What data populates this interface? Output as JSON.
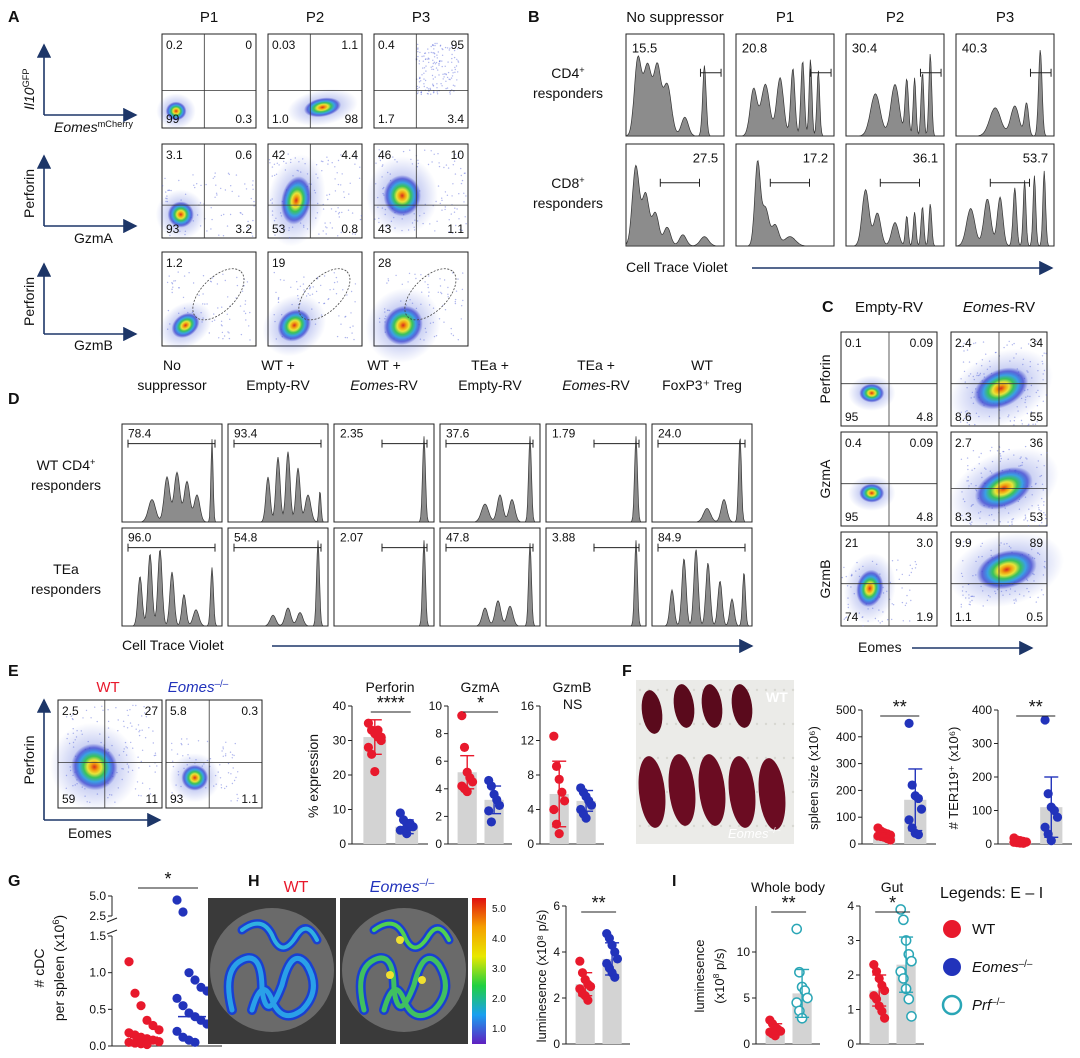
{
  "colors": {
    "wt": "#e8192c",
    "ko": "#2233bb",
    "prf": "#2aa6b6",
    "bar": "#d3d3d3",
    "arrow": "#1d3668",
    "hist": "#8c8c8c"
  },
  "A": {
    "letter": "A",
    "cols": [
      "P1",
      "P2",
      "P3"
    ],
    "axes": [
      {
        "y": "Il10",
        "ysup": "GFP",
        "x": "Eomes",
        "xsup": "mCherry"
      },
      {
        "y": "Perforin",
        "x": "GzmA"
      },
      {
        "y": "Perforin",
        "x": "GzmB"
      }
    ],
    "quads": [
      [
        [
          "0.2",
          "0",
          "99",
          "0.3"
        ],
        [
          "0.03",
          "1.1",
          "1.0",
          "98"
        ],
        [
          "0.4",
          "95",
          "1.7",
          "3.4"
        ]
      ],
      [
        [
          "3.1",
          "0.6",
          "93",
          "3.2"
        ],
        [
          "42",
          "4.4",
          "53",
          "0.8"
        ],
        [
          "46",
          "10",
          "43",
          "1.1"
        ]
      ]
    ],
    "gates": [
      "1.2",
      "19",
      "28"
    ]
  },
  "B": {
    "letter": "B",
    "cols": [
      "No suppressor",
      "P1",
      "P2",
      "P3"
    ],
    "rows": [
      {
        "l1": "CD4",
        "sup": "+",
        "l2": "responders"
      },
      {
        "l1": "CD8",
        "sup": "+",
        "l2": "responders"
      }
    ],
    "vals": [
      [
        "15.5",
        "20.8",
        "30.4",
        "40.3"
      ],
      [
        "27.5",
        "17.2",
        "36.1",
        "53.7"
      ]
    ],
    "xlabel": "Cell Trace Violet"
  },
  "C": {
    "letter": "C",
    "cols": [
      "Empty-RV",
      "Eomes-RV"
    ],
    "rows": [
      "Perforin",
      "GzmA",
      "GzmB"
    ],
    "quads": [
      [
        [
          "0.1",
          "0.09",
          "95",
          "4.8"
        ],
        [
          "2.4",
          "34",
          "8.6",
          "55"
        ]
      ],
      [
        [
          "0.4",
          "0.09",
          "95",
          "4.8"
        ],
        [
          "2.7",
          "36",
          "8.3",
          "53"
        ]
      ],
      [
        [
          "21",
          "3.0",
          "74",
          "1.9"
        ],
        [
          "9.9",
          "89",
          "1.1",
          "0.5"
        ]
      ]
    ],
    "xlabel": "Eomes"
  },
  "D": {
    "letter": "D",
    "cols": [
      {
        "l1": "No",
        "l2": "suppressor"
      },
      {
        "l1": "WT +",
        "l2": "Empty-RV"
      },
      {
        "l1": "WT +",
        "l2": "Eomes-RV"
      },
      {
        "l1": "TEa +",
        "l2": "Empty-RV"
      },
      {
        "l1": "TEa +",
        "l2": "Eomes-RV"
      },
      {
        "l1": "WT",
        "l2": "FoxP3⁺ Treg"
      }
    ],
    "rows": [
      {
        "l1": "WT CD4",
        "sup": "+",
        "l2": "responders"
      },
      {
        "l1": "TEa",
        "sup": "",
        "l2": "responders"
      }
    ],
    "vals": [
      [
        "78.4",
        "93.4",
        "2.35",
        "37.6",
        "1.79",
        "24.0"
      ],
      [
        "96.0",
        "54.8",
        "2.07",
        "47.8",
        "3.88",
        "84.9"
      ]
    ],
    "xlabel": "Cell Trace Violet"
  },
  "E": {
    "letter": "E",
    "wt": "WT",
    "ko": "Eomes",
    "kosup": "–/–",
    "quads": [
      [
        "2.5",
        "27",
        "59",
        "11"
      ],
      [
        "5.8",
        "0.3",
        "93",
        "1.1"
      ]
    ],
    "ylabel": "Perforin",
    "xlabel": "Eomes",
    "bar_ylabel": "% expression"
  },
  "F": {
    "letter": "F",
    "wt_label": "WT",
    "ko_label": "Eomes",
    "ko_sup": "–/–"
  },
  "G": {
    "letter": "G",
    "yl1": "# cDC",
    "yl2": "per spleen (x10",
    "ylsup": "6",
    "ylend": ")"
  },
  "H": {
    "letter": "H",
    "wt": "WT",
    "ko": "Eomes",
    "kosup": "–/–",
    "scale": [
      "5.0",
      "4.0",
      "3.0",
      "2.0",
      "1.0"
    ]
  },
  "I": {
    "letter": "I"
  },
  "legend": {
    "title": "Legends: E – I",
    "items": [
      {
        "label": "WT",
        "sup": ""
      },
      {
        "label": "Eomes",
        "sup": "–/–"
      },
      {
        "label": "Prf",
        "sup": "–/–"
      }
    ]
  },
  "chart_data": [
    {
      "type": "bar",
      "title": "Perforin",
      "ylabel": "% expression",
      "categories": [
        "WT",
        "Eomes–/–"
      ],
      "values": [
        31,
        5
      ],
      "sd": [
        5,
        2
      ],
      "ylim": [
        0,
        40
      ],
      "yticks": [
        0,
        10,
        20,
        30,
        40
      ],
      "significance": "****",
      "points": [
        [
          35,
          33,
          32,
          31,
          30,
          28,
          26,
          21,
          33,
          31
        ],
        [
          9,
          7,
          6,
          5,
          5,
          4,
          4,
          3,
          6
        ]
      ]
    },
    {
      "type": "bar",
      "title": "GzmA",
      "categories": [
        "WT",
        "Eomes–/–"
      ],
      "values": [
        5.2,
        3.2
      ],
      "sd": [
        1.2,
        1.0
      ],
      "ylim": [
        0,
        10
      ],
      "yticks": [
        0,
        2,
        4,
        6,
        8,
        10
      ],
      "significance": "*",
      "points": [
        [
          9.3,
          7,
          5.2,
          4.8,
          4.5,
          4.2,
          4.0,
          3.8
        ],
        [
          4.6,
          4.2,
          3.6,
          3.2,
          2.8,
          2.4,
          1.6
        ]
      ]
    },
    {
      "type": "bar",
      "title": "GzmB",
      "categories": [
        "WT",
        "Eomes–/–"
      ],
      "values": [
        5.8,
        5.0
      ],
      "sd": [
        3.8,
        1.2
      ],
      "ylim": [
        0,
        16
      ],
      "yticks": [
        0,
        4,
        8,
        12,
        16
      ],
      "significance": "NS",
      "points": [
        [
          12.5,
          9,
          7.5,
          6,
          5,
          4,
          2.3,
          1.2
        ],
        [
          6.5,
          6,
          5.5,
          5,
          4.5,
          4,
          3.5,
          3
        ]
      ]
    },
    {
      "type": "bar",
      "ylabel": "spleen size (x10⁶)",
      "categories": [
        "WT",
        "Eomes–/–"
      ],
      "values": [
        35,
        165
      ],
      "sd": [
        12,
        115
      ],
      "ylim": [
        0,
        500
      ],
      "yticks": [
        0,
        100,
        200,
        300,
        400,
        500
      ],
      "significance": "**",
      "points": [
        [
          60,
          48,
          42,
          38,
          33,
          30,
          28,
          25,
          20,
          15
        ],
        [
          450,
          220,
          180,
          170,
          130,
          90,
          60,
          40,
          35
        ]
      ]
    },
    {
      "type": "bar",
      "ylabel": "# TER119⁺ (x10⁶)",
      "categories": [
        "WT",
        "Eomes–/–"
      ],
      "values": [
        8,
        110
      ],
      "sd": [
        6,
        90
      ],
      "ylim": [
        0,
        400
      ],
      "yticks": [
        0,
        100,
        200,
        300,
        400
      ],
      "significance": "**",
      "points": [
        [
          18,
          12,
          10,
          8,
          6,
          5,
          4,
          3,
          2
        ],
        [
          370,
          150,
          110,
          100,
          80,
          50,
          30,
          10
        ]
      ]
    },
    {
      "type": "scatter",
      "ylabel": "# cDC per spleen (x10⁶)",
      "categories": [
        "WT",
        "Eomes–/–"
      ],
      "yticks": [
        "0.0",
        "0.5",
        "1.0",
        "1.5",
        "2.5",
        "5.0"
      ],
      "significance": "*",
      "points": [
        [
          1.15,
          0.72,
          0.55,
          0.35,
          0.28,
          0.22,
          0.18,
          0.15,
          0.12,
          0.1,
          0.08,
          0.06,
          0.05,
          0.04,
          0.03,
          0.02
        ],
        [
          4.5,
          3.0,
          1.0,
          0.9,
          0.8,
          0.75,
          0.65,
          0.55,
          0.45,
          0.4,
          0.35,
          0.3,
          0.2,
          0.12,
          0.08,
          0.05
        ]
      ]
    },
    {
      "type": "bar",
      "ylabel": "luminesence (x10⁸ p/s)",
      "categories": [
        "WT",
        "Eomes–/–"
      ],
      "values": [
        2.6,
        3.7
      ],
      "sd": [
        0.5,
        0.7
      ],
      "ylim": [
        0,
        6
      ],
      "yticks": [
        0,
        2,
        4,
        6
      ],
      "significance": "**",
      "points": [
        [
          3.6,
          3.1,
          2.8,
          2.6,
          2.5,
          2.4,
          2.2,
          2.1,
          1.9
        ],
        [
          4.8,
          4.6,
          4.3,
          4.0,
          3.7,
          3.5,
          3.3,
          3.1,
          2.9
        ]
      ]
    },
    {
      "type": "bar",
      "title": "Whole body",
      "ylabel": "luminesence (x10⁸ p/s)",
      "categories": [
        "WT",
        "Prf–/–"
      ],
      "values": [
        1.6,
        5.5
      ],
      "sd": [
        0.6,
        2.6
      ],
      "ylim": [
        0,
        15
      ],
      "yticks": [
        0,
        5,
        10
      ],
      "significance": "**",
      "points": [
        [
          2.6,
          2.2,
          1.8,
          1.6,
          1.4,
          1.3,
          1.1,
          0.9
        ],
        [
          12.5,
          7.8,
          6.2,
          5.8,
          5.0,
          4.5,
          3.6,
          2.8
        ]
      ]
    },
    {
      "type": "bar",
      "title": "Gut",
      "categories": [
        "WT",
        "Prf–/–"
      ],
      "values": [
        1.55,
        2.3
      ],
      "sd": [
        0.45,
        0.8
      ],
      "ylim": [
        0,
        4
      ],
      "yticks": [
        0,
        1,
        2,
        3,
        4
      ],
      "significance": "*",
      "points": [
        [
          2.3,
          2.1,
          1.9,
          1.7,
          1.55,
          1.4,
          1.3,
          1.1,
          0.95,
          0.75
        ],
        [
          3.9,
          3.6,
          3.0,
          2.6,
          2.4,
          2.1,
          1.9,
          1.6,
          1.3,
          0.8
        ]
      ]
    }
  ]
}
